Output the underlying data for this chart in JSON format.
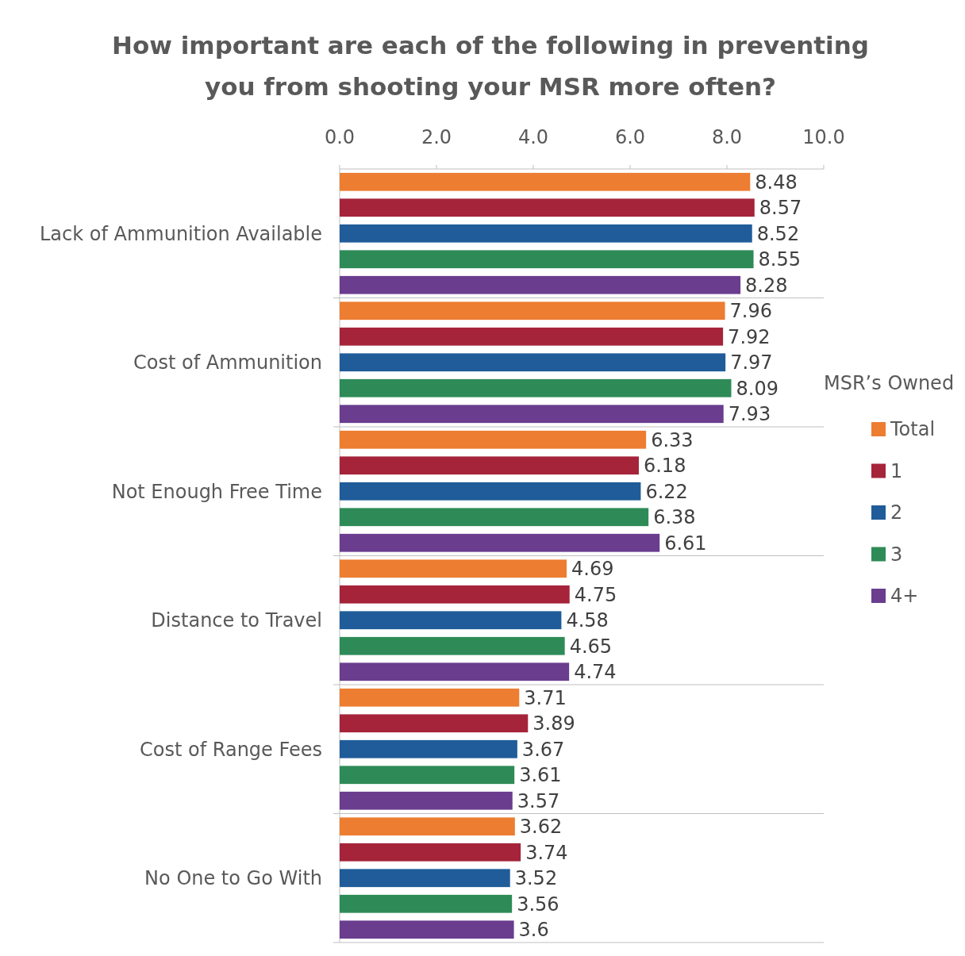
{
  "chart_data": {
    "type": "bar",
    "orientation": "horizontal",
    "title": "How important are each of the following in preventing you from shooting your MSR more often?",
    "legend_title": "MSR’s Owned",
    "categories": [
      "Lack of Ammunition Available",
      "Cost of Ammunition",
      "Not Enough Free Time",
      "Distance to Travel",
      "Cost of Range Fees",
      "No One to Go With"
    ],
    "series": [
      {
        "name": "Total",
        "color": "#ed7d31",
        "values": [
          8.48,
          7.96,
          6.33,
          4.69,
          3.71,
          3.62
        ]
      },
      {
        "name": "1",
        "color": "#a5243a",
        "values": [
          8.57,
          7.92,
          6.18,
          4.75,
          3.89,
          3.74
        ]
      },
      {
        "name": "2",
        "color": "#1f5c99",
        "values": [
          8.52,
          7.97,
          6.22,
          4.58,
          3.67,
          3.52
        ]
      },
      {
        "name": "3",
        "color": "#2e8b57",
        "values": [
          8.55,
          8.09,
          6.38,
          4.65,
          3.61,
          3.56
        ]
      },
      {
        "name": "4+",
        "color": "#6a3d8f",
        "values": [
          8.28,
          7.93,
          6.61,
          4.74,
          3.57,
          3.6
        ]
      }
    ],
    "xlim": [
      0,
      10
    ],
    "xticks": [
      {
        "value": 0,
        "label": "0.0"
      },
      {
        "value": 2,
        "label": "2.0"
      },
      {
        "value": 4,
        "label": "4.0"
      },
      {
        "value": 6,
        "label": "6.0"
      },
      {
        "value": 8,
        "label": "8.0"
      },
      {
        "value": 10,
        "label": "10.0"
      }
    ],
    "data_labels": true,
    "legend": "right",
    "grid": false
  }
}
